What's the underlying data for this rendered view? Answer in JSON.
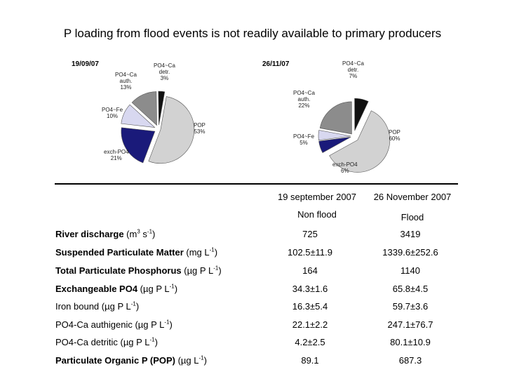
{
  "title": "P loading from flood events is not readily available to primary producers",
  "chart_data": [
    {
      "type": "pie",
      "title": "19/09/07",
      "slices": [
        {
          "label": "POP",
          "value": 53,
          "text": "53%",
          "color": "#d2d2d2"
        },
        {
          "label": "exch-PO4",
          "value": 21,
          "text": "21%",
          "color": "#1a1a7a"
        },
        {
          "label": "PO4~Fe",
          "value": 10,
          "text": "10%",
          "color": "#d8d8f0"
        },
        {
          "label": "PO4~Ca auth.",
          "value": 13,
          "text": "13%",
          "color": "#8c8c8c"
        },
        {
          "label": "PO4~Ca detr.",
          "value": 3,
          "text": "3%",
          "color": "#111111"
        }
      ]
    },
    {
      "type": "pie",
      "title": "26/11/07",
      "slices": [
        {
          "label": "POP",
          "value": 60,
          "text": "60%",
          "color": "#d2d2d2"
        },
        {
          "label": "exch-PO4",
          "value": 6,
          "text": "6%",
          "color": "#1a1a7a"
        },
        {
          "label": "PO4~Fe",
          "value": 5,
          "text": "5%",
          "color": "#d8d8f0"
        },
        {
          "label": "PO4~Ca auth.",
          "value": 22,
          "text": "22%",
          "color": "#8c8c8c"
        },
        {
          "label": "PO4~Ca detr.",
          "value": 7,
          "text": "7%",
          "color": "#111111"
        }
      ]
    },
    {
      "type": "table",
      "columns": [
        "19 september 2007",
        "26 November 2007"
      ],
      "conditions": [
        "Non flood",
        "Flood"
      ],
      "rows": [
        {
          "name": "River discharge",
          "unit": "(m",
          "unit_sup": "3",
          "unit_mid": " s",
          "unit_sup2": "-1",
          "unit_end": ")",
          "bold": true,
          "values": [
            "725",
            "3419"
          ]
        },
        {
          "name": "Suspended Particulate Matter",
          "unit": "(mg L",
          "unit_sup": "-1",
          "unit_end": ")",
          "bold": true,
          "values": [
            "102.5±11.9",
            "1339.6±252.6"
          ]
        },
        {
          "name": "Total Particulate Phosphorus",
          "unit": "(µg P L",
          "unit_sup": "-1",
          "unit_end": ")",
          "bold": true,
          "values": [
            "164",
            "1140"
          ]
        },
        {
          "name": "Exchangeable PO4",
          "unit": "(µg P L",
          "unit_sup": "-1",
          "unit_end": ")",
          "bold": true,
          "values": [
            "34.3±1.6",
            "65.8±4.5"
          ]
        },
        {
          "name": "Iron bound",
          "unit": "(µg P L",
          "unit_sup": "-1",
          "unit_end": ")",
          "bold": false,
          "values": [
            "16.3±5.4",
            "59.7±3.6"
          ]
        },
        {
          "name": "PO4-Ca authigenic",
          "unit": "(µg P L",
          "unit_sup": "-1",
          "unit_end": ")",
          "bold": false,
          "values": [
            "22.1±2.2",
            "247.1±76.7"
          ]
        },
        {
          "name": "PO4-Ca detritic",
          "unit": "(µg P L",
          "unit_sup": "-1",
          "unit_end": ")",
          "bold": false,
          "values": [
            "4.2±2.5",
            "80.1±10.9"
          ]
        },
        {
          "name": "Particulate Organic P (POP)",
          "unit": "(µg L",
          "unit_sup": "-1",
          "unit_end": ")",
          "bold": true,
          "values": [
            "89.1",
            "687.3"
          ]
        }
      ]
    }
  ]
}
